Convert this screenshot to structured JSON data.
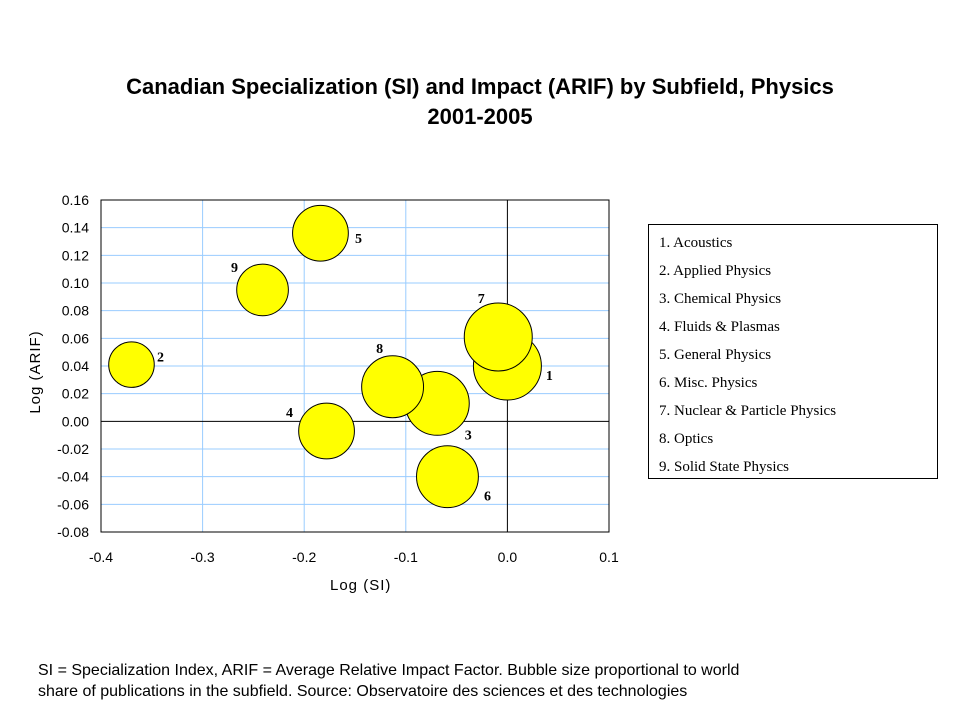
{
  "title_line1": "Canadian Specialization (SI) and Impact (ARIF) by Subfield, Physics",
  "title_line2": "2001-2005",
  "footnote_line1": "SI = Specialization Index, ARIF = Average Relative Impact Factor. Bubble size proportional to world",
  "footnote_line2": "share of publications in the subfield. Source: Observatoire des sciences et des technologies",
  "legend": [
    "1. Acoustics",
    "2. Applied Physics",
    "3. Chemical Physics",
    "4. Fluids & Plasmas",
    "5. General Physics",
    "6. Misc. Physics",
    "7. Nuclear & Particle Physics",
    "8. Optics",
    "9. Solid State Physics"
  ],
  "colors": {
    "bubble_fill": "#ffff00",
    "bubble_stroke": "#000000",
    "grid": "#99ccff",
    "axis": "#000000"
  },
  "chart_data": {
    "type": "scatter",
    "xlabel": "Log (SI)",
    "ylabel": "Log (ARIF)",
    "xlim": [
      -0.4,
      0.1
    ],
    "ylim": [
      -0.08,
      0.16
    ],
    "xticks": [
      -0.4,
      -0.3,
      -0.2,
      -0.1,
      0.0,
      0.1
    ],
    "xtick_labels": [
      "-0.4",
      "-0.3",
      "-0.2",
      "-0.1",
      "0.0",
      "0.1"
    ],
    "yticks": [
      0.16,
      0.14,
      0.12,
      0.1,
      0.08,
      0.06,
      0.04,
      0.02,
      0.0,
      -0.02,
      -0.04,
      -0.06,
      -0.08
    ],
    "ytick_labels": [
      "0.16",
      "0.14",
      "0.12",
      "0.10",
      "0.08",
      "0.06",
      "0.04",
      "0.02",
      "0.00",
      "-0.02",
      "-0.04",
      "-0.06",
      "-0.08"
    ],
    "grid": true,
    "legend_position": "right",
    "series": [
      {
        "points": [
          {
            "label": "1",
            "x": 0.0,
            "y": 0.04,
            "size": 1.0
          },
          {
            "label": "2",
            "x": -0.37,
            "y": 0.041,
            "size": 0.67
          },
          {
            "label": "3",
            "x": -0.069,
            "y": 0.013,
            "size": 0.94
          },
          {
            "label": "4",
            "x": -0.178,
            "y": -0.007,
            "size": 0.82
          },
          {
            "label": "5",
            "x": -0.184,
            "y": 0.136,
            "size": 0.82
          },
          {
            "label": "6",
            "x": -0.059,
            "y": -0.04,
            "size": 0.91
          },
          {
            "label": "7",
            "x": -0.009,
            "y": 0.061,
            "size": 1.0
          },
          {
            "label": "8",
            "x": -0.113,
            "y": 0.025,
            "size": 0.91
          },
          {
            "label": "9",
            "x": -0.241,
            "y": 0.095,
            "size": 0.76
          }
        ]
      }
    ]
  }
}
